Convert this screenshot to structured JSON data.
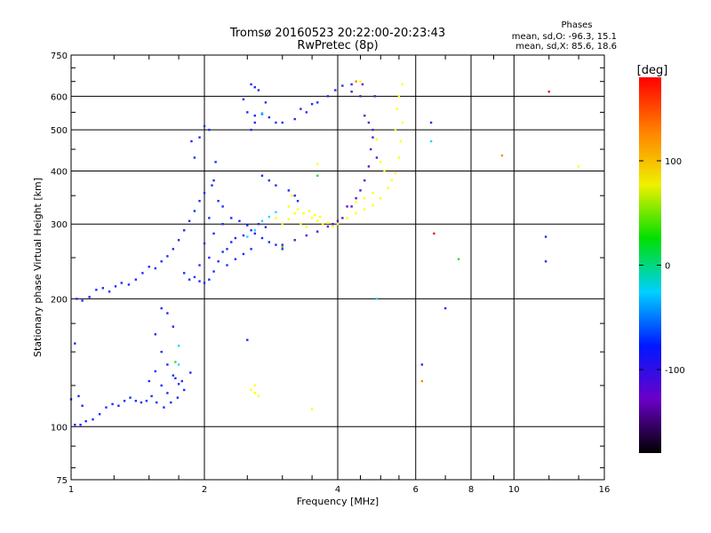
{
  "chart_data": {
    "type": "scatter",
    "title": "Tromsø 20160523 20:22:00-20:23:43",
    "subtitle": "RwPretec (8p)",
    "xlabel": "Frequency [MHz]",
    "ylabel": "Stationary phase Virtual Height [km]",
    "x_scale": "log",
    "y_scale": "log",
    "xlim": [
      1,
      16
    ],
    "ylim": [
      75,
      750
    ],
    "x_ticks": [
      1,
      2,
      4,
      6,
      8,
      10,
      16
    ],
    "y_ticks": [
      75,
      100,
      200,
      300,
      400,
      500,
      600,
      750
    ],
    "grid": true,
    "stats": {
      "heading": "Phases",
      "line_o": "mean, sd,O: -96.3, 15.1",
      "line_x": "mean, sd,X:  85.6, 18.6"
    },
    "colorbar": {
      "label": "[deg]",
      "range": [
        -180,
        180
      ],
      "ticks": [
        100,
        0,
        -100
      ],
      "colors": [
        "#000000",
        "#6a00c8",
        "#0018ff",
        "#00d0ff",
        "#00e000",
        "#f0f000",
        "#ff8000",
        "#ff0000"
      ]
    },
    "series": [
      {
        "color": "#1a2cff",
        "points": [
          [
            1.02,
            101
          ],
          [
            1.05,
            101
          ],
          [
            1.08,
            103
          ],
          [
            1.12,
            104
          ],
          [
            1.16,
            107
          ],
          [
            1.2,
            111
          ],
          [
            1.24,
            113
          ],
          [
            1.28,
            112
          ],
          [
            1.32,
            115
          ],
          [
            1.36,
            117
          ],
          [
            1.4,
            115
          ],
          [
            1.44,
            114
          ],
          [
            1.48,
            115
          ],
          [
            1.52,
            118
          ],
          [
            1.56,
            114
          ],
          [
            1.62,
            111
          ],
          [
            1.68,
            114
          ],
          [
            1.74,
            117
          ],
          [
            1.8,
            122
          ],
          [
            1.86,
            134
          ],
          [
            1.0,
            116
          ],
          [
            1.04,
            118
          ],
          [
            1.06,
            112
          ],
          [
            1.02,
            157
          ],
          [
            1.03,
            200
          ],
          [
            1.06,
            198
          ],
          [
            1.1,
            202
          ],
          [
            1.14,
            210
          ],
          [
            1.18,
            212
          ],
          [
            1.22,
            208
          ],
          [
            1.26,
            214
          ],
          [
            1.3,
            218
          ],
          [
            1.35,
            216
          ],
          [
            1.4,
            222
          ],
          [
            1.45,
            230
          ],
          [
            1.5,
            238
          ],
          [
            1.55,
            236
          ],
          [
            1.6,
            245
          ],
          [
            1.65,
            252
          ],
          [
            1.7,
            262
          ],
          [
            1.75,
            275
          ],
          [
            1.8,
            290
          ],
          [
            1.85,
            305
          ],
          [
            1.9,
            322
          ],
          [
            1.95,
            340
          ],
          [
            2.0,
            355
          ],
          [
            1.9,
            430
          ],
          [
            1.95,
            480
          ],
          [
            2.0,
            510
          ],
          [
            1.87,
            470
          ],
          [
            2.05,
            500
          ],
          [
            1.8,
            230
          ],
          [
            1.85,
            222
          ],
          [
            1.9,
            225
          ],
          [
            1.95,
            220
          ],
          [
            2.0,
            218
          ],
          [
            2.05,
            222
          ],
          [
            2.1,
            232
          ],
          [
            2.15,
            245
          ],
          [
            2.2,
            258
          ],
          [
            2.25,
            262
          ],
          [
            2.3,
            272
          ],
          [
            2.35,
            278
          ],
          [
            2.45,
            282
          ],
          [
            2.55,
            290
          ],
          [
            2.65,
            300
          ],
          [
            2.75,
            295
          ],
          [
            2.0,
            270
          ],
          [
            2.1,
            285
          ],
          [
            2.2,
            300
          ],
          [
            2.05,
            310
          ],
          [
            2.15,
            340
          ],
          [
            2.1,
            380
          ],
          [
            2.12,
            420
          ],
          [
            2.08,
            370
          ],
          [
            2.2,
            330
          ],
          [
            2.3,
            310
          ],
          [
            2.4,
            305
          ],
          [
            2.5,
            298
          ],
          [
            2.6,
            285
          ],
          [
            2.7,
            278
          ],
          [
            2.8,
            272
          ],
          [
            2.9,
            268
          ],
          [
            3.0,
            262
          ],
          [
            1.95,
            240
          ],
          [
            2.05,
            250
          ],
          [
            2.25,
            240
          ],
          [
            2.35,
            248
          ],
          [
            2.45,
            255
          ],
          [
            2.55,
            262
          ],
          [
            1.55,
            165
          ],
          [
            1.6,
            190
          ],
          [
            1.65,
            185
          ],
          [
            1.7,
            172
          ],
          [
            1.6,
            150
          ],
          [
            1.65,
            140
          ],
          [
            1.7,
            132
          ],
          [
            1.75,
            126
          ],
          [
            1.55,
            135
          ],
          [
            1.6,
            125
          ],
          [
            1.65,
            120
          ],
          [
            1.72,
            130
          ],
          [
            1.78,
            128
          ],
          [
            1.5,
            128
          ],
          [
            2.5,
            550
          ],
          [
            2.6,
            540
          ],
          [
            2.7,
            545
          ],
          [
            2.8,
            535
          ],
          [
            2.9,
            520
          ],
          [
            2.6,
            520
          ],
          [
            2.55,
            500
          ],
          [
            2.75,
            580
          ],
          [
            2.45,
            590
          ],
          [
            3.0,
            520
          ],
          [
            3.2,
            530
          ],
          [
            3.4,
            550
          ],
          [
            3.6,
            580
          ],
          [
            3.8,
            600
          ],
          [
            3.95,
            620
          ],
          [
            4.1,
            635
          ],
          [
            4.3,
            640
          ],
          [
            3.3,
            560
          ],
          [
            3.5,
            575
          ],
          [
            2.55,
            640
          ],
          [
            2.6,
            630
          ],
          [
            2.65,
            620
          ],
          [
            2.7,
            390
          ],
          [
            2.8,
            380
          ],
          [
            2.9,
            370
          ],
          [
            3.1,
            360
          ],
          [
            3.2,
            350
          ],
          [
            3.25,
            340
          ],
          [
            6.2,
            140
          ],
          [
            6.5,
            520
          ],
          [
            7.0,
            190
          ],
          [
            11.8,
            280
          ],
          [
            11.8,
            245
          ],
          [
            2.5,
            160
          ]
        ]
      },
      {
        "color": "#5a14cc",
        "points": [
          [
            3.0,
            268
          ],
          [
            3.2,
            275
          ],
          [
            3.4,
            282
          ],
          [
            3.6,
            288
          ],
          [
            3.8,
            296
          ],
          [
            4.0,
            305
          ],
          [
            3.9,
            300
          ],
          [
            4.1,
            310
          ],
          [
            4.3,
            330
          ],
          [
            4.5,
            360
          ],
          [
            4.6,
            380
          ],
          [
            4.7,
            410
          ],
          [
            4.75,
            450
          ],
          [
            4.8,
            500
          ],
          [
            4.7,
            520
          ],
          [
            4.6,
            540
          ],
          [
            4.8,
            480
          ],
          [
            4.9,
            430
          ],
          [
            4.85,
            600
          ],
          [
            4.5,
            600
          ],
          [
            4.3,
            615
          ],
          [
            4.55,
            640
          ],
          [
            4.2,
            330
          ],
          [
            4.4,
            345
          ]
        ]
      },
      {
        "color": "#ffff00",
        "points": [
          [
            2.9,
            310
          ],
          [
            3.0,
            300
          ],
          [
            3.1,
            308
          ],
          [
            3.2,
            318
          ],
          [
            3.3,
            300
          ],
          [
            3.4,
            295
          ],
          [
            3.5,
            310
          ],
          [
            3.6,
            305
          ],
          [
            3.7,
            300
          ],
          [
            3.8,
            302
          ],
          [
            3.9,
            296
          ],
          [
            3.1,
            330
          ],
          [
            3.15,
            350
          ],
          [
            3.25,
            325
          ],
          [
            3.35,
            318
          ],
          [
            3.45,
            322
          ],
          [
            3.55,
            315
          ],
          [
            3.65,
            312
          ],
          [
            4.0,
            300
          ],
          [
            4.2,
            310
          ],
          [
            4.4,
            318
          ],
          [
            4.6,
            325
          ],
          [
            4.8,
            332
          ],
          [
            5.0,
            345
          ],
          [
            5.2,
            365
          ],
          [
            5.4,
            395
          ],
          [
            5.5,
            430
          ],
          [
            5.55,
            470
          ],
          [
            5.6,
            520
          ],
          [
            5.5,
            600
          ],
          [
            5.0,
            420
          ],
          [
            5.1,
            400
          ],
          [
            5.3,
            380
          ],
          [
            4.8,
            355
          ],
          [
            4.6,
            345
          ],
          [
            4.4,
            338
          ],
          [
            5.4,
            500
          ],
          [
            5.45,
            560
          ],
          [
            2.6,
            120
          ],
          [
            2.65,
            118
          ],
          [
            2.55,
            122
          ],
          [
            2.6,
            125
          ],
          [
            3.5,
            110
          ],
          [
            3.6,
            415
          ],
          [
            5.6,
            640
          ],
          [
            4.5,
            650
          ],
          [
            4.9,
            475
          ],
          [
            14,
            410
          ]
        ]
      },
      {
        "color": "#1ed8ff",
        "points": [
          [
            2.6,
            290
          ],
          [
            2.7,
            305
          ],
          [
            2.8,
            312
          ],
          [
            2.9,
            320
          ],
          [
            2.5,
            280
          ],
          [
            2.7,
            548
          ],
          [
            6.5,
            470
          ],
          [
            4.9,
            200
          ],
          [
            1.75,
            140
          ],
          [
            1.75,
            155
          ]
        ]
      },
      {
        "color": "#34d834",
        "points": [
          [
            7.5,
            248
          ],
          [
            3.6,
            390
          ],
          [
            3.0,
            265
          ],
          [
            1.72,
            142
          ]
        ]
      },
      {
        "color": "#ff8a00",
        "points": [
          [
            9.4,
            435
          ],
          [
            6.2,
            128
          ],
          [
            4.4,
            650
          ]
        ]
      },
      {
        "color": "#e02020",
        "points": [
          [
            12.0,
            615
          ],
          [
            6.6,
            285
          ]
        ]
      }
    ]
  }
}
